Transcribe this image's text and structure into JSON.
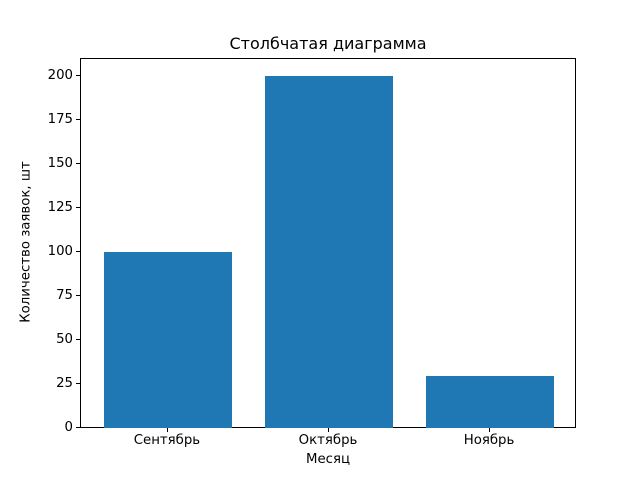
{
  "chart_data": {
    "type": "bar",
    "title": "Столбчатая диаграмма",
    "xlabel": "Месяц",
    "ylabel": "Количество заявок, шт",
    "categories": [
      "Сентябрь",
      "Октябрь",
      "Ноябрь"
    ],
    "values": [
      100,
      200,
      30
    ],
    "yticks": [
      0,
      25,
      50,
      75,
      100,
      125,
      150,
      175,
      200
    ],
    "ylim": [
      0,
      210
    ],
    "xlim": [
      -0.54,
      2.54
    ],
    "bar_width": 0.8,
    "bar_color": "#1f77b4",
    "background_color": "#ffffff",
    "spine_color": "#000000",
    "grid": false,
    "legend_position": "none"
  }
}
